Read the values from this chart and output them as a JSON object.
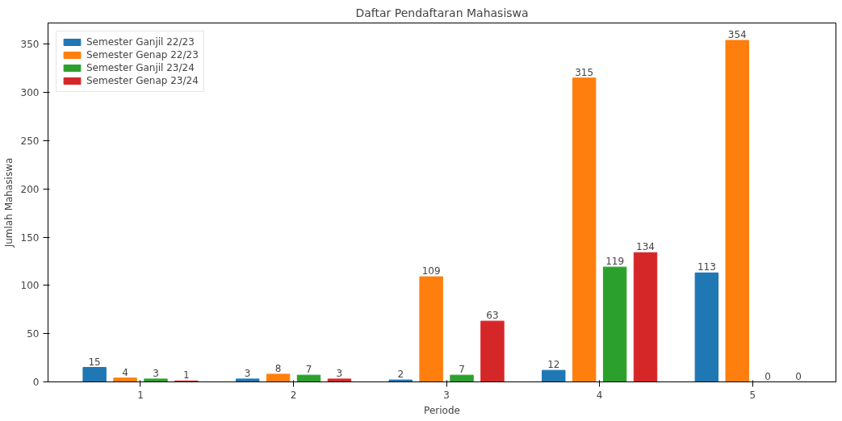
{
  "chart_data": {
    "type": "bar",
    "title": "Daftar Pendaftaran Mahasiswa",
    "xlabel": "Periode",
    "ylabel": "Jumlah Mahasiswa",
    "categories": [
      "1",
      "2",
      "3",
      "4",
      "5"
    ],
    "series": [
      {
        "name": "Semester Ganjil 22/23",
        "color": "#1f77b4",
        "values": [
          15,
          3,
          2,
          12,
          113
        ]
      },
      {
        "name": "Semester Genap 22/23",
        "color": "#ff7f0e",
        "values": [
          4,
          8,
          109,
          315,
          354
        ]
      },
      {
        "name": "Semester Ganjil 23/24",
        "color": "#2ca02c",
        "values": [
          3,
          7,
          7,
          119,
          0
        ]
      },
      {
        "name": "Semester Genap 23/24",
        "color": "#d62728",
        "values": [
          1,
          3,
          63,
          134,
          0
        ]
      }
    ],
    "ylim": [
      0,
      372
    ],
    "yticks": [
      0,
      50,
      100,
      150,
      200,
      250,
      300,
      350
    ],
    "grid": false,
    "legend": "top left",
    "data_labels": true
  }
}
